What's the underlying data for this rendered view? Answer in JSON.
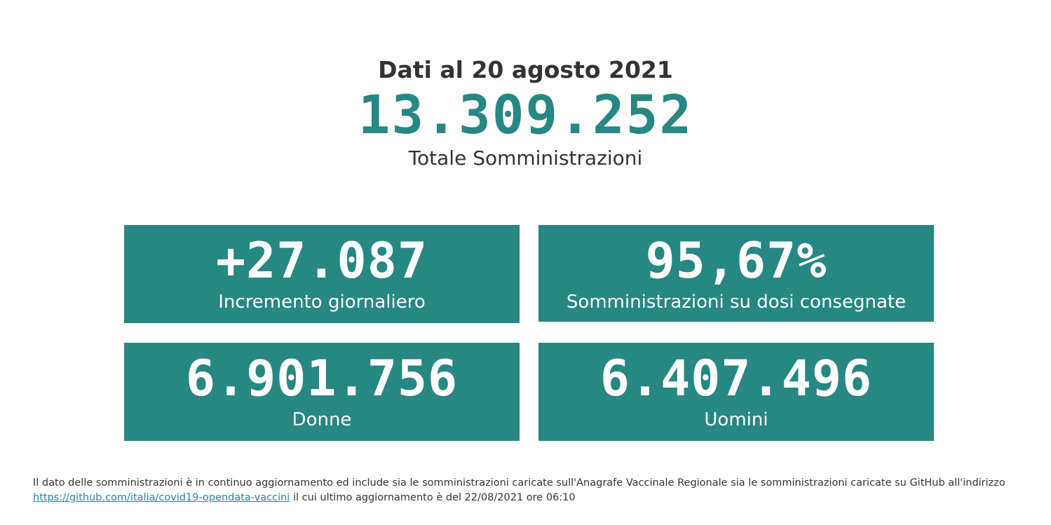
{
  "header": {
    "date_label": "Dati al 20 agosto 2021",
    "total_value": "13.309.252",
    "total_label": "Totale Somministrazioni"
  },
  "cards": [
    {
      "value": "+27.087",
      "label": "Incremento giornaliero"
    },
    {
      "value": "95,67%",
      "label": "Somministrazioni su dosi consegnate"
    },
    {
      "value": "6.901.756",
      "label": "Donne"
    },
    {
      "value": "6.407.496",
      "label": "Uomini"
    }
  ],
  "footnote": {
    "text_before": "Il dato delle somministrazioni è in continuo aggiornamento ed include sia le somministrazioni caricate sull'Anagrafe Vaccinale Regionale sia le somministrazioni caricate su GitHub all'indirizzo",
    "link_text": "https://github.com/italia/covid19-opendata-vaccini",
    "text_after": "il cui ultimo aggiornamento è del 22/08/2021 ore 06:10"
  },
  "colors": {
    "accent": "#278783",
    "text": "#333333",
    "link": "#2a7fb0"
  }
}
